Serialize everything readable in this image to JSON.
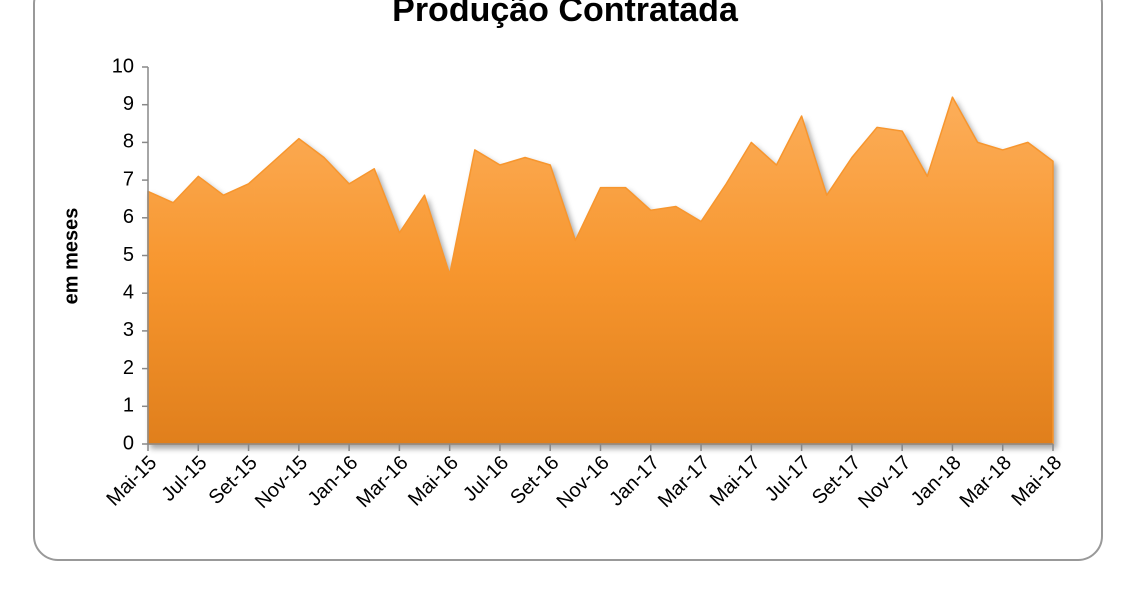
{
  "chart_data": {
    "type": "area",
    "title": "Produção Contratada",
    "y_label": "em meses",
    "color": "#f7962e",
    "categories": [
      "Mai-15",
      null,
      "Jul-15",
      null,
      "Set-15",
      null,
      "Nov-15",
      null,
      "Jan-16",
      null,
      "Mar-16",
      null,
      "Mai-16",
      null,
      "Jul-16",
      null,
      "Set-16",
      null,
      "Nov-16",
      null,
      "Jan-17",
      null,
      "Mar-17",
      null,
      "Mai-17",
      null,
      "Jul-17",
      null,
      "Set-17",
      null,
      "Nov-17",
      null,
      "Jan-18",
      null,
      "Mar-18",
      null,
      "Mai-18"
    ],
    "values": [
      6.7,
      6.4,
      7.1,
      6.6,
      6.9,
      7.5,
      8.1,
      7.6,
      6.9,
      7.3,
      5.6,
      6.6,
      4.5,
      7.8,
      7.4,
      7.6,
      7.4,
      5.4,
      6.8,
      6.8,
      6.2,
      6.3,
      5.9,
      6.9,
      8.0,
      7.4,
      8.7,
      6.6,
      7.6,
      8.4,
      8.3,
      7.1,
      9.2,
      8.0,
      7.8,
      8.0,
      7.5
    ],
    "ylim": [
      0,
      10
    ],
    "yticks": [
      0,
      1,
      2,
      3,
      4,
      5,
      6,
      7,
      8,
      9,
      10
    ]
  }
}
